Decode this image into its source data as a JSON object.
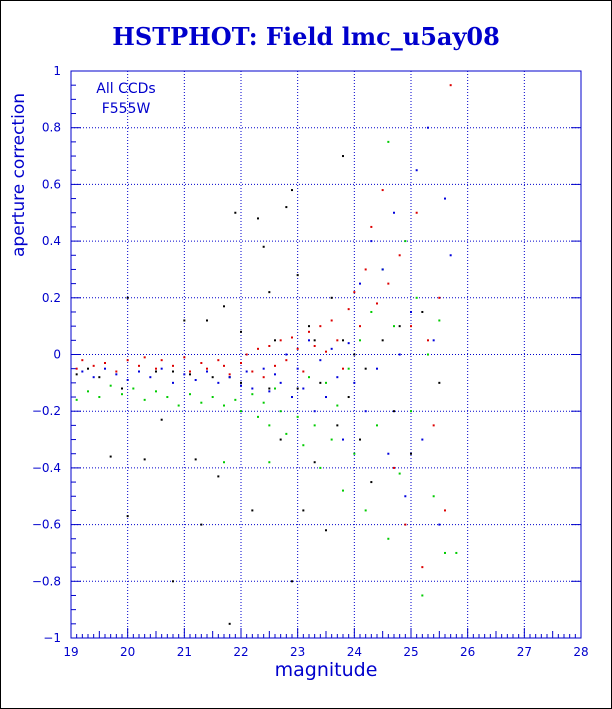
{
  "page": {
    "title": "HSTPHOT: Field lmc_u5ay08"
  },
  "chart_data": {
    "type": "scatter",
    "title": "HSTPHOT: Field lmc_u5ay08",
    "xlabel": "magnitude",
    "ylabel": "aperture correction",
    "xlim": [
      19,
      28
    ],
    "ylim": [
      -1,
      1
    ],
    "x_ticks": [
      19,
      20,
      21,
      22,
      23,
      24,
      25,
      26,
      27,
      28
    ],
    "y_ticks": [
      -1,
      -0.8,
      -0.6,
      -0.4,
      -0.2,
      0,
      0.2,
      0.4,
      0.6,
      0.8,
      1
    ],
    "x_tick_labels": [
      "19",
      "20",
      "21",
      "22",
      "23",
      "24",
      "25",
      "26",
      "27",
      "28"
    ],
    "y_tick_labels": [
      "−1",
      "−0.8",
      "−0.6",
      "−0.4",
      "−0.2",
      "0",
      "0.2",
      "0.4",
      "0.6",
      "0.8",
      "1"
    ],
    "grid": true,
    "annotation": [
      "All CCDs",
      "F555W"
    ],
    "colors": {
      "axis": "#0000cc",
      "ccd_1": "#000000",
      "ccd_2": "#dd0000",
      "ccd_3": "#00cc00",
      "ccd_4": "#0000dd"
    },
    "series": [
      {
        "color": "#000000",
        "points": [
          [
            19.1,
            -0.07
          ],
          [
            19.3,
            -0.05
          ],
          [
            19.5,
            -0.08
          ],
          [
            19.7,
            -0.36
          ],
          [
            19.9,
            -0.12
          ],
          [
            20.0,
            0.2
          ],
          [
            20.0,
            -0.57
          ],
          [
            20.2,
            -0.06
          ],
          [
            20.3,
            -0.37
          ],
          [
            20.5,
            -0.06
          ],
          [
            20.6,
            -0.23
          ],
          [
            20.8,
            -0.06
          ],
          [
            20.8,
            -0.8
          ],
          [
            21.0,
            0.12
          ],
          [
            21.1,
            -0.07
          ],
          [
            21.2,
            -0.37
          ],
          [
            21.3,
            -0.6
          ],
          [
            21.4,
            0.12
          ],
          [
            21.5,
            -0.08
          ],
          [
            21.6,
            -0.43
          ],
          [
            21.7,
            0.17
          ],
          [
            21.8,
            -0.08
          ],
          [
            21.8,
            -0.95
          ],
          [
            21.9,
            0.5
          ],
          [
            22.0,
            0.08
          ],
          [
            22.0,
            -0.1
          ],
          [
            22.2,
            -0.55
          ],
          [
            22.3,
            0.48
          ],
          [
            22.4,
            0.38
          ],
          [
            22.5,
            0.22
          ],
          [
            22.5,
            -0.12
          ],
          [
            22.6,
            0.05
          ],
          [
            22.7,
            -0.3
          ],
          [
            22.8,
            0.52
          ],
          [
            22.9,
            0.58
          ],
          [
            22.9,
            -0.8
          ],
          [
            23.0,
            0.28
          ],
          [
            23.0,
            -0.12
          ],
          [
            23.1,
            -0.55
          ],
          [
            23.2,
            0.1
          ],
          [
            23.3,
            0.05
          ],
          [
            23.3,
            -0.38
          ],
          [
            23.4,
            -0.1
          ],
          [
            23.5,
            -0.62
          ],
          [
            23.6,
            0.2
          ],
          [
            23.7,
            -0.25
          ],
          [
            23.8,
            0.05
          ],
          [
            23.8,
            0.7
          ],
          [
            23.9,
            -0.15
          ],
          [
            24.0,
            0.0
          ],
          [
            24.1,
            -0.3
          ],
          [
            24.2,
            -0.05
          ],
          [
            24.3,
            -0.45
          ],
          [
            24.5,
            0.05
          ],
          [
            24.7,
            -0.2
          ],
          [
            24.8,
            0.1
          ],
          [
            25.0,
            -0.35
          ],
          [
            25.2,
            0.15
          ],
          [
            25.3,
            0.0
          ],
          [
            25.5,
            -0.1
          ]
        ]
      },
      {
        "color": "#dd0000",
        "points": [
          [
            19.1,
            -0.05
          ],
          [
            19.2,
            -0.02
          ],
          [
            19.4,
            -0.04
          ],
          [
            19.6,
            -0.03
          ],
          [
            19.8,
            -0.06
          ],
          [
            20.0,
            -0.02
          ],
          [
            20.2,
            -0.04
          ],
          [
            20.3,
            -0.01
          ],
          [
            20.5,
            -0.05
          ],
          [
            20.6,
            -0.02
          ],
          [
            20.8,
            -0.04
          ],
          [
            21.0,
            -0.01
          ],
          [
            21.1,
            -0.06
          ],
          [
            21.3,
            -0.03
          ],
          [
            21.4,
            -0.05
          ],
          [
            21.6,
            -0.02
          ],
          [
            21.7,
            -0.04
          ],
          [
            21.8,
            -0.07
          ],
          [
            22.0,
            -0.03
          ],
          [
            22.1,
            0.0
          ],
          [
            22.2,
            -0.06
          ],
          [
            22.3,
            0.02
          ],
          [
            22.4,
            -0.08
          ],
          [
            22.5,
            0.03
          ],
          [
            22.6,
            -0.04
          ],
          [
            22.7,
            0.05
          ],
          [
            22.8,
            -0.02
          ],
          [
            22.9,
            0.06
          ],
          [
            23.0,
            0.02
          ],
          [
            23.1,
            -0.06
          ],
          [
            23.2,
            0.08
          ],
          [
            23.3,
            0.03
          ],
          [
            23.4,
            0.1
          ],
          [
            23.5,
            0.01
          ],
          [
            23.6,
            0.12
          ],
          [
            23.7,
            0.05
          ],
          [
            23.8,
            -0.05
          ],
          [
            23.9,
            0.16
          ],
          [
            24.0,
            0.22
          ],
          [
            24.1,
            0.1
          ],
          [
            24.2,
            0.3
          ],
          [
            24.3,
            0.45
          ],
          [
            24.4,
            0.18
          ],
          [
            24.5,
            0.58
          ],
          [
            24.6,
            0.25
          ],
          [
            24.7,
            -0.4
          ],
          [
            24.8,
            0.35
          ],
          [
            24.9,
            -0.6
          ],
          [
            25.0,
            0.1
          ],
          [
            25.1,
            0.5
          ],
          [
            25.2,
            -0.75
          ],
          [
            25.3,
            0.05
          ],
          [
            25.4,
            -0.25
          ],
          [
            25.5,
            0.2
          ],
          [
            25.6,
            -0.55
          ],
          [
            25.7,
            0.95
          ]
        ]
      },
      {
        "color": "#00cc00",
        "points": [
          [
            19.1,
            -0.16
          ],
          [
            19.3,
            -0.13
          ],
          [
            19.5,
            -0.15
          ],
          [
            19.7,
            -0.11
          ],
          [
            19.9,
            -0.14
          ],
          [
            20.1,
            -0.12
          ],
          [
            20.3,
            -0.16
          ],
          [
            20.5,
            -0.13
          ],
          [
            20.7,
            -0.15
          ],
          [
            20.9,
            -0.18
          ],
          [
            21.1,
            -0.14
          ],
          [
            21.3,
            -0.17
          ],
          [
            21.5,
            -0.15
          ],
          [
            21.7,
            -0.18
          ],
          [
            21.9,
            -0.16
          ],
          [
            22.0,
            -0.2
          ],
          [
            22.2,
            -0.14
          ],
          [
            22.3,
            -0.22
          ],
          [
            22.4,
            -0.17
          ],
          [
            22.5,
            -0.25
          ],
          [
            22.6,
            -0.12
          ],
          [
            22.7,
            -0.2
          ],
          [
            22.8,
            -0.28
          ],
          [
            22.9,
            -0.15
          ],
          [
            23.0,
            -0.22
          ],
          [
            23.1,
            -0.32
          ],
          [
            23.2,
            -0.08
          ],
          [
            23.3,
            -0.25
          ],
          [
            23.4,
            -0.4
          ],
          [
            23.5,
            -0.1
          ],
          [
            23.6,
            -0.3
          ],
          [
            23.7,
            -0.18
          ],
          [
            23.8,
            -0.48
          ],
          [
            23.9,
            -0.05
          ],
          [
            24.0,
            -0.35
          ],
          [
            24.1,
            0.05
          ],
          [
            24.2,
            -0.55
          ],
          [
            24.3,
            0.15
          ],
          [
            24.4,
            -0.25
          ],
          [
            24.5,
            0.3
          ],
          [
            24.6,
            -0.65
          ],
          [
            24.7,
            0.1
          ],
          [
            24.8,
            -0.42
          ],
          [
            24.9,
            0.4
          ],
          [
            25.0,
            -0.2
          ],
          [
            25.1,
            0.2
          ],
          [
            25.2,
            -0.85
          ],
          [
            25.3,
            0.0
          ],
          [
            25.4,
            -0.5
          ],
          [
            25.5,
            0.12
          ],
          [
            25.6,
            -0.7
          ],
          [
            25.8,
            -0.7
          ],
          [
            24.6,
            0.75
          ],
          [
            22.5,
            -0.38
          ],
          [
            21.7,
            -0.38
          ]
        ]
      },
      {
        "color": "#0000dd",
        "points": [
          [
            19.2,
            -0.06
          ],
          [
            19.4,
            -0.08
          ],
          [
            19.6,
            -0.05
          ],
          [
            19.8,
            -0.07
          ],
          [
            20.0,
            -0.09
          ],
          [
            20.2,
            -0.06
          ],
          [
            20.4,
            -0.08
          ],
          [
            20.6,
            -0.05
          ],
          [
            20.8,
            -0.1
          ],
          [
            21.0,
            -0.07
          ],
          [
            21.2,
            -0.09
          ],
          [
            21.4,
            -0.06
          ],
          [
            21.6,
            -0.1
          ],
          [
            21.8,
            -0.08
          ],
          [
            22.0,
            -0.11
          ],
          [
            22.1,
            -0.06
          ],
          [
            22.2,
            -0.12
          ],
          [
            22.4,
            -0.05
          ],
          [
            22.5,
            -0.13
          ],
          [
            22.6,
            -0.07
          ],
          [
            22.7,
            -0.1
          ],
          [
            22.8,
            0.0
          ],
          [
            22.9,
            -0.15
          ],
          [
            23.0,
            -0.05
          ],
          [
            23.1,
            -0.12
          ],
          [
            23.2,
            0.05
          ],
          [
            23.3,
            -0.2
          ],
          [
            23.4,
            -0.02
          ],
          [
            23.5,
            -0.15
          ],
          [
            23.6,
            0.02
          ],
          [
            23.7,
            -0.08
          ],
          [
            23.8,
            -0.3
          ],
          [
            23.9,
            0.04
          ],
          [
            24.0,
            -0.1
          ],
          [
            24.1,
            0.25
          ],
          [
            24.2,
            -0.2
          ],
          [
            24.3,
            0.4
          ],
          [
            24.4,
            -0.05
          ],
          [
            24.5,
            0.3
          ],
          [
            24.6,
            -0.35
          ],
          [
            24.7,
            0.5
          ],
          [
            24.8,
            0.0
          ],
          [
            24.9,
            -0.5
          ],
          [
            25.0,
            0.15
          ],
          [
            25.1,
            0.65
          ],
          [
            25.2,
            -0.3
          ],
          [
            25.3,
            0.8
          ],
          [
            25.4,
            0.05
          ],
          [
            25.5,
            -0.6
          ],
          [
            25.6,
            0.55
          ],
          [
            25.7,
            0.35
          ]
        ]
      }
    ]
  }
}
